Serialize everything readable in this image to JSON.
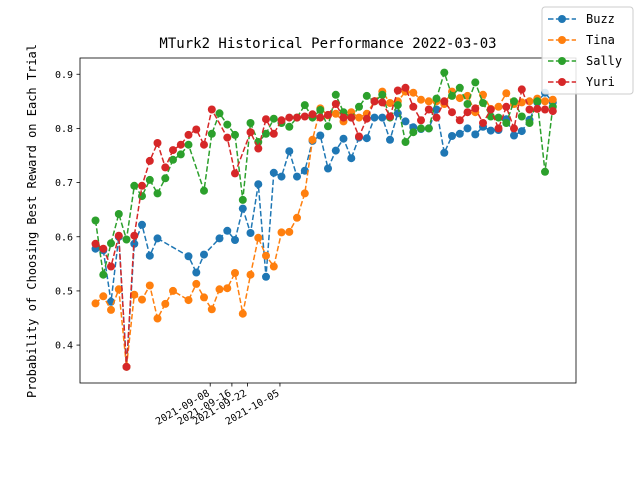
{
  "chart_data": {
    "type": "line",
    "title": "MTurk2 Historical Performance 2022-03-03",
    "xlabel": "",
    "ylabel": "Probability of Choosing Best Reward on Each Trial",
    "ylim": [
      0.33,
      0.93
    ],
    "yticks": [
      0.4,
      0.5,
      0.6,
      0.7,
      0.8,
      0.9
    ],
    "xticks": [
      "2021-09-08",
      "2021-09-16",
      "2021-09-22",
      "2021-10-05"
    ],
    "legend_position": "top-right",
    "grid": false,
    "series": [
      {
        "name": "Buzz",
        "color": "#1f77b4",
        "points": [
          [
            0,
            0.578
          ],
          [
            1,
            0.575
          ],
          [
            2,
            0.48
          ],
          [
            3,
            0.6
          ],
          [
            4,
            0.36
          ],
          [
            5,
            0.587
          ],
          [
            6,
            0.622
          ],
          [
            7,
            0.565
          ],
          [
            8,
            0.597
          ],
          [
            12,
            0.564
          ],
          [
            13,
            0.534
          ],
          [
            14,
            0.567
          ],
          [
            16,
            0.597
          ],
          [
            17,
            0.611
          ],
          [
            18,
            0.594
          ],
          [
            19,
            0.652
          ],
          [
            20,
            0.607
          ],
          [
            21,
            0.697
          ],
          [
            22,
            0.526
          ],
          [
            23,
            0.718
          ],
          [
            24,
            0.711
          ],
          [
            25,
            0.758
          ],
          [
            26,
            0.711
          ],
          [
            27,
            0.722
          ],
          [
            28,
            0.777
          ],
          [
            29,
            0.787
          ],
          [
            30,
            0.726
          ],
          [
            31,
            0.759
          ],
          [
            32,
            0.781
          ],
          [
            33,
            0.745
          ],
          [
            34,
            0.783
          ],
          [
            35,
            0.782
          ],
          [
            36,
            0.82
          ],
          [
            37,
            0.82
          ],
          [
            38,
            0.779
          ],
          [
            39,
            0.828
          ],
          [
            40,
            0.813
          ],
          [
            41,
            0.802
          ],
          [
            42,
            0.799
          ],
          [
            43,
            0.8
          ],
          [
            44,
            0.835
          ],
          [
            45,
            0.755
          ],
          [
            46,
            0.786
          ],
          [
            47,
            0.79
          ],
          [
            48,
            0.8
          ],
          [
            49,
            0.789
          ],
          [
            50,
            0.803
          ],
          [
            51,
            0.796
          ],
          [
            52,
            0.797
          ],
          [
            53,
            0.817
          ],
          [
            54,
            0.787
          ],
          [
            55,
            0.795
          ],
          [
            56,
            0.816
          ],
          [
            57,
            0.848
          ],
          [
            58,
            0.866
          ],
          [
            59,
            0.848
          ]
        ]
      },
      {
        "name": "Tina",
        "color": "#ff7f0e",
        "points": [
          [
            0,
            0.477
          ],
          [
            1,
            0.49
          ],
          [
            2,
            0.465
          ],
          [
            3,
            0.503
          ],
          [
            4,
            0.36
          ],
          [
            5,
            0.493
          ],
          [
            6,
            0.484
          ],
          [
            7,
            0.51
          ],
          [
            8,
            0.449
          ],
          [
            9,
            0.476
          ],
          [
            10,
            0.5
          ],
          [
            12,
            0.483
          ],
          [
            13,
            0.513
          ],
          [
            14,
            0.488
          ],
          [
            15,
            0.466
          ],
          [
            16,
            0.503
          ],
          [
            17,
            0.505
          ],
          [
            18,
            0.533
          ],
          [
            19,
            0.458
          ],
          [
            20,
            0.53
          ],
          [
            21,
            0.598
          ],
          [
            22,
            0.565
          ],
          [
            23,
            0.545
          ],
          [
            24,
            0.608
          ],
          [
            25,
            0.609
          ],
          [
            26,
            0.635
          ],
          [
            27,
            0.68
          ],
          [
            28,
            0.779
          ],
          [
            29,
            0.837
          ],
          [
            30,
            0.824
          ],
          [
            31,
            0.827
          ],
          [
            32,
            0.813
          ],
          [
            33,
            0.83
          ],
          [
            34,
            0.82
          ],
          [
            35,
            0.827
          ],
          [
            36,
            0.85
          ],
          [
            37,
            0.868
          ],
          [
            38,
            0.847
          ],
          [
            39,
            0.85
          ],
          [
            40,
            0.868
          ],
          [
            41,
            0.866
          ],
          [
            42,
            0.853
          ],
          [
            43,
            0.85
          ],
          [
            44,
            0.85
          ],
          [
            45,
            0.845
          ],
          [
            46,
            0.868
          ],
          [
            47,
            0.856
          ],
          [
            48,
            0.86
          ],
          [
            49,
            0.83
          ],
          [
            50,
            0.862
          ],
          [
            51,
            0.836
          ],
          [
            52,
            0.84
          ],
          [
            53,
            0.865
          ],
          [
            54,
            0.845
          ],
          [
            55,
            0.848
          ],
          [
            56,
            0.85
          ],
          [
            57,
            0.855
          ],
          [
            58,
            0.85
          ],
          [
            59,
            0.853
          ]
        ]
      },
      {
        "name": "Sally",
        "color": "#2ca02c",
        "points": [
          [
            0,
            0.63
          ],
          [
            1,
            0.53
          ],
          [
            2,
            0.588
          ],
          [
            3,
            0.642
          ],
          [
            4,
            0.595
          ],
          [
            5,
            0.694
          ],
          [
            6,
            0.675
          ],
          [
            7,
            0.705
          ],
          [
            8,
            0.68
          ],
          [
            9,
            0.708
          ],
          [
            10,
            0.742
          ],
          [
            11,
            0.752
          ],
          [
            12,
            0.77
          ],
          [
            14,
            0.685
          ],
          [
            15,
            0.79
          ],
          [
            16,
            0.828
          ],
          [
            17,
            0.807
          ],
          [
            18,
            0.788
          ],
          [
            19,
            0.668
          ],
          [
            20,
            0.81
          ],
          [
            21,
            0.775
          ],
          [
            22,
            0.79
          ],
          [
            23,
            0.818
          ],
          [
            24,
            0.81
          ],
          [
            25,
            0.803
          ],
          [
            26,
            0.82
          ],
          [
            27,
            0.843
          ],
          [
            28,
            0.82
          ],
          [
            29,
            0.834
          ],
          [
            30,
            0.804
          ],
          [
            31,
            0.862
          ],
          [
            32,
            0.83
          ],
          [
            33,
            0.82
          ],
          [
            34,
            0.84
          ],
          [
            35,
            0.86
          ],
          [
            36,
            0.85
          ],
          [
            37,
            0.862
          ],
          [
            38,
            0.82
          ],
          [
            39,
            0.843
          ],
          [
            40,
            0.775
          ],
          [
            41,
            0.793
          ],
          [
            42,
            0.8
          ],
          [
            43,
            0.8
          ],
          [
            44,
            0.855
          ],
          [
            45,
            0.903
          ],
          [
            46,
            0.86
          ],
          [
            47,
            0.875
          ],
          [
            48,
            0.845
          ],
          [
            49,
            0.885
          ],
          [
            50,
            0.847
          ],
          [
            51,
            0.822
          ],
          [
            52,
            0.82
          ],
          [
            53,
            0.81
          ],
          [
            54,
            0.85
          ],
          [
            55,
            0.822
          ],
          [
            56,
            0.81
          ],
          [
            57,
            0.85
          ],
          [
            58,
            0.72
          ],
          [
            59,
            0.84
          ]
        ]
      },
      {
        "name": "Yuri",
        "color": "#d62728",
        "points": [
          [
            0,
            0.587
          ],
          [
            1,
            0.578
          ],
          [
            2,
            0.545
          ],
          [
            3,
            0.602
          ],
          [
            4,
            0.36
          ],
          [
            5,
            0.602
          ],
          [
            6,
            0.694
          ],
          [
            7,
            0.74
          ],
          [
            8,
            0.773
          ],
          [
            9,
            0.728
          ],
          [
            10,
            0.76
          ],
          [
            11,
            0.77
          ],
          [
            12,
            0.788
          ],
          [
            13,
            0.798
          ],
          [
            14,
            0.77
          ],
          [
            15,
            0.835
          ],
          [
            17,
            0.783
          ],
          [
            18,
            0.717
          ],
          [
            20,
            0.793
          ],
          [
            21,
            0.763
          ],
          [
            22,
            0.817
          ],
          [
            23,
            0.79
          ],
          [
            24,
            0.815
          ],
          [
            25,
            0.82
          ],
          [
            26,
            0.82
          ],
          [
            27,
            0.822
          ],
          [
            28,
            0.826
          ],
          [
            29,
            0.82
          ],
          [
            30,
            0.825
          ],
          [
            31,
            0.845
          ],
          [
            32,
            0.82
          ],
          [
            33,
            0.82
          ],
          [
            34,
            0.785
          ],
          [
            35,
            0.818
          ],
          [
            36,
            0.85
          ],
          [
            37,
            0.848
          ],
          [
            38,
            0.822
          ],
          [
            39,
            0.87
          ],
          [
            40,
            0.875
          ],
          [
            41,
            0.84
          ],
          [
            42,
            0.815
          ],
          [
            43,
            0.835
          ],
          [
            44,
            0.82
          ],
          [
            45,
            0.85
          ],
          [
            46,
            0.83
          ],
          [
            47,
            0.815
          ],
          [
            48,
            0.83
          ],
          [
            49,
            0.837
          ],
          [
            50,
            0.81
          ],
          [
            51,
            0.835
          ],
          [
            52,
            0.8
          ],
          [
            53,
            0.84
          ],
          [
            54,
            0.8
          ],
          [
            55,
            0.872
          ],
          [
            56,
            0.835
          ],
          [
            57,
            0.836
          ],
          [
            58,
            0.835
          ],
          [
            59,
            0.832
          ]
        ]
      }
    ]
  }
}
